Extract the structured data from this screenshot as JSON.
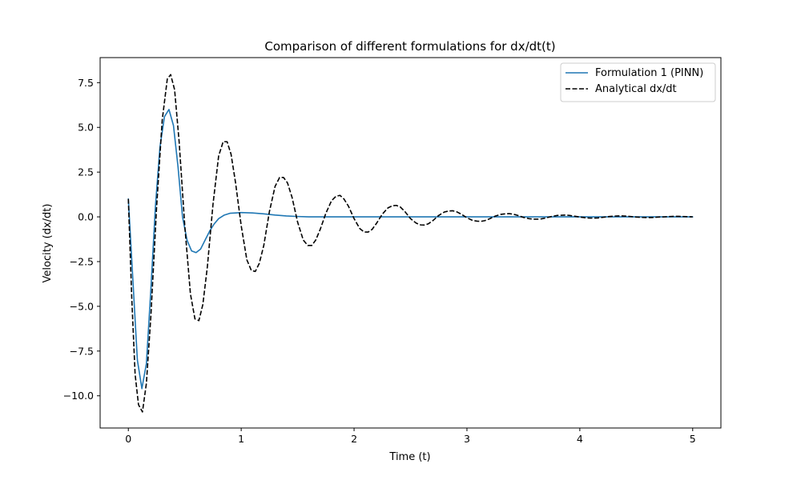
{
  "chart_data": {
    "type": "line",
    "title": "Comparison of different formulations for dx/dt(t)",
    "xlabel": "Time (t)",
    "ylabel": "Velocity (dx/dt)",
    "xlim": [
      -0.25,
      5.25
    ],
    "ylim": [
      -11.8,
      8.9
    ],
    "xticks": [
      0,
      1,
      2,
      3,
      4,
      5
    ],
    "xtick_labels": [
      "0",
      "1",
      "2",
      "3",
      "4",
      "5"
    ],
    "yticks": [
      -10,
      -7.5,
      -5,
      -2.5,
      0,
      2.5,
      5,
      7.5
    ],
    "ytick_labels": [
      "−10.0",
      "−7.5",
      "−5.0",
      "−2.5",
      "0.0",
      "2.5",
      "5.0",
      "7.5"
    ],
    "grid": false,
    "legend_position": "top-right",
    "series": [
      {
        "name": "Formulation 1 (PINN)",
        "color": "#1f77b4",
        "style": "solid",
        "x": [
          0.0,
          0.04,
          0.08,
          0.12,
          0.16,
          0.2,
          0.24,
          0.28,
          0.32,
          0.36,
          0.4,
          0.44,
          0.48,
          0.52,
          0.56,
          0.6,
          0.64,
          0.68,
          0.72,
          0.76,
          0.8,
          0.85,
          0.9,
          0.95,
          1.0,
          1.1,
          1.2,
          1.3,
          1.4,
          1.5,
          1.6,
          1.8,
          2.0,
          2.5,
          3.0,
          3.5,
          4.0,
          4.5,
          5.0
        ],
        "y": [
          1.0,
          -3.5,
          -8.0,
          -9.6,
          -8.2,
          -4.0,
          0.6,
          3.9,
          5.6,
          6.0,
          5.1,
          2.8,
          0.0,
          -1.3,
          -1.9,
          -2.0,
          -1.8,
          -1.3,
          -0.8,
          -0.4,
          -0.1,
          0.1,
          0.2,
          0.22,
          0.24,
          0.22,
          0.17,
          0.1,
          0.05,
          0.02,
          0.0,
          0.0,
          0.0,
          0.0,
          0.0,
          0.0,
          0.0,
          0.0,
          0.0
        ]
      },
      {
        "name": "Analytical dx/dt",
        "color": "#000000",
        "style": "dashed",
        "x": [
          0.0,
          0.03,
          0.06,
          0.09,
          0.125,
          0.16,
          0.2,
          0.25,
          0.3,
          0.345,
          0.375,
          0.41,
          0.45,
          0.5,
          0.55,
          0.59,
          0.625,
          0.66,
          0.7,
          0.75,
          0.8,
          0.84,
          0.875,
          0.91,
          0.95,
          1.0,
          1.05,
          1.09,
          1.125,
          1.16,
          1.2,
          1.25,
          1.3,
          1.34,
          1.375,
          1.41,
          1.45,
          1.5,
          1.55,
          1.59,
          1.625,
          1.66,
          1.7,
          1.75,
          1.8,
          1.84,
          1.875,
          1.91,
          1.95,
          2.0,
          2.05,
          2.09,
          2.125,
          2.16,
          2.2,
          2.25,
          2.3,
          2.34,
          2.375,
          2.41,
          2.45,
          2.5,
          2.55,
          2.59,
          2.625,
          2.66,
          2.7,
          2.75,
          2.8,
          2.84,
          2.875,
          2.91,
          2.95,
          3.0,
          3.05,
          3.09,
          3.125,
          3.16,
          3.2,
          3.25,
          3.3,
          3.34,
          3.375,
          3.41,
          3.45,
          3.5,
          3.55,
          3.59,
          3.625,
          3.66,
          3.7,
          3.75,
          3.8,
          3.84,
          3.875,
          3.91,
          3.95,
          4.0,
          4.05,
          4.09,
          4.125,
          4.16,
          4.2,
          4.25,
          4.3,
          4.34,
          4.375,
          4.41,
          4.45,
          4.5,
          4.55,
          4.59,
          4.625,
          4.66,
          4.7,
          4.75,
          4.8,
          4.84,
          4.875,
          4.91,
          4.95,
          5.0
        ],
        "y": [
          1.0,
          -4.5,
          -8.8,
          -10.5,
          -10.9,
          -9.3,
          -5.5,
          0.5,
          5.4,
          7.7,
          7.95,
          7.1,
          4.2,
          -0.5,
          -4.3,
          -5.7,
          -5.8,
          -4.9,
          -2.8,
          0.7,
          3.4,
          4.2,
          4.2,
          3.5,
          1.9,
          -0.5,
          -2.4,
          -3.0,
          -3.05,
          -2.6,
          -1.6,
          0.3,
          1.7,
          2.2,
          2.2,
          1.9,
          1.1,
          -0.3,
          -1.3,
          -1.6,
          -1.6,
          -1.3,
          -0.7,
          0.2,
          0.9,
          1.15,
          1.2,
          1.0,
          0.6,
          -0.1,
          -0.65,
          -0.85,
          -0.85,
          -0.7,
          -0.35,
          0.15,
          0.5,
          0.62,
          0.64,
          0.55,
          0.3,
          -0.1,
          -0.35,
          -0.45,
          -0.46,
          -0.38,
          -0.2,
          0.08,
          0.27,
          0.33,
          0.34,
          0.28,
          0.15,
          -0.05,
          -0.2,
          -0.24,
          -0.25,
          -0.21,
          -0.11,
          0.04,
          0.14,
          0.17,
          0.18,
          0.15,
          0.08,
          -0.03,
          -0.1,
          -0.13,
          -0.13,
          -0.11,
          -0.06,
          0.02,
          0.08,
          0.09,
          0.1,
          0.08,
          0.04,
          -0.01,
          -0.05,
          -0.07,
          -0.07,
          -0.06,
          -0.03,
          0.01,
          0.04,
          0.05,
          0.05,
          0.04,
          0.02,
          -0.01,
          -0.03,
          -0.04,
          -0.04,
          -0.03,
          -0.01,
          0.0,
          0.02,
          0.03,
          0.03,
          0.02,
          0.01,
          0.0
        ]
      }
    ]
  }
}
